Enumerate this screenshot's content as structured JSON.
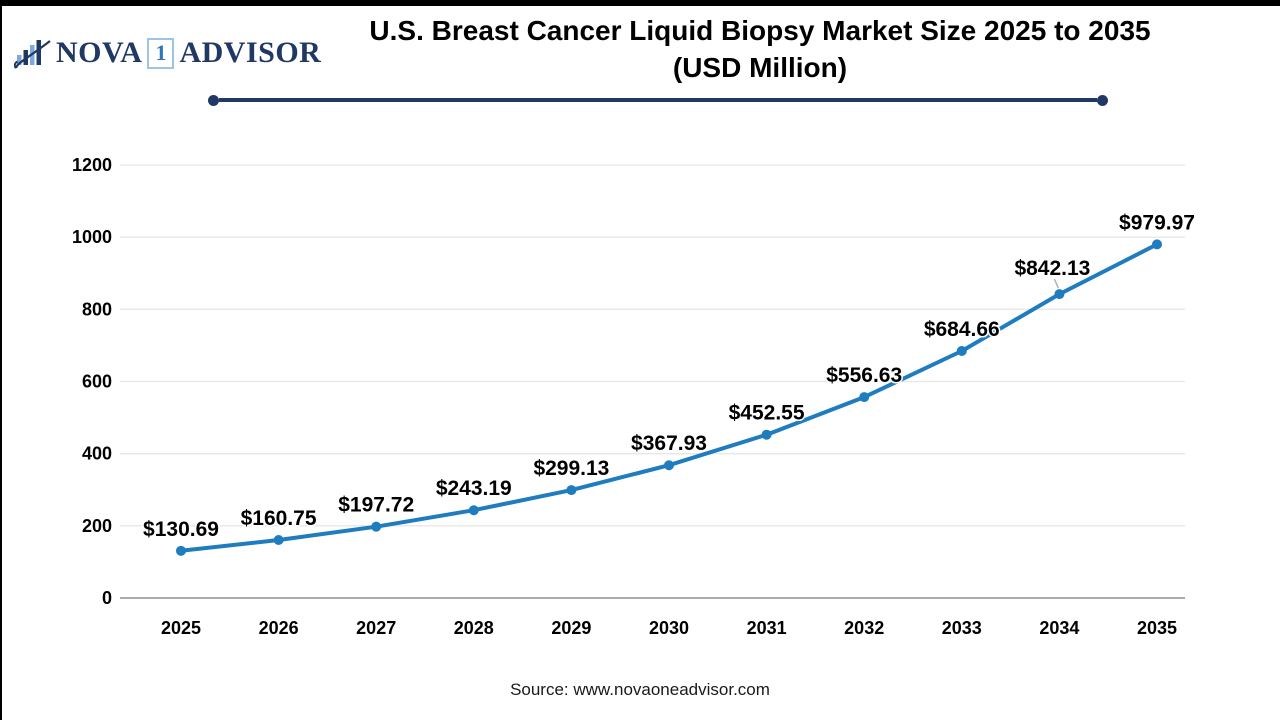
{
  "header": {
    "logo": {
      "icon": "bar-chart-swoosh-icon",
      "nova": "NOVA",
      "one": "1",
      "advisor": "ADVISOR"
    },
    "title_line1": "U.S. Breast Cancer Liquid Biopsy Market Size 2025 to 2035",
    "title_line2": "(USD Million)"
  },
  "colors": {
    "brand_navy": "#1F3864",
    "logo_light_blue": "#7FA8DC",
    "logo_one_blue": "#2E75B6",
    "line_blue": "#1E7CBF"
  },
  "chart_data": {
    "type": "line",
    "title": "U.S. Breast Cancer Liquid Biopsy Market Size 2025 to 2035 (USD Million)",
    "categories": [
      "2025",
      "2026",
      "2027",
      "2028",
      "2029",
      "2030",
      "2031",
      "2032",
      "2033",
      "2034",
      "2035"
    ],
    "values": [
      130.69,
      160.75,
      197.72,
      243.19,
      299.13,
      367.93,
      452.55,
      556.63,
      684.66,
      842.13,
      979.97
    ],
    "point_labels": [
      "$130.69",
      "$160.75",
      "$197.72",
      "$243.19",
      "$299.13",
      "$367.93",
      "$452.55",
      "$556.63",
      "$684.66",
      "$842.13",
      "$979.97"
    ],
    "xlabel": "",
    "ylabel": "",
    "ylim": [
      0,
      1200
    ],
    "yticks": [
      0,
      200,
      400,
      600,
      800,
      1000,
      1200
    ],
    "grid": "horizontal",
    "legend": "none",
    "line_color": "#1E7CBF",
    "callout_index": 9
  },
  "footer": {
    "source": "Source: www.novaoneadvisor.com"
  }
}
